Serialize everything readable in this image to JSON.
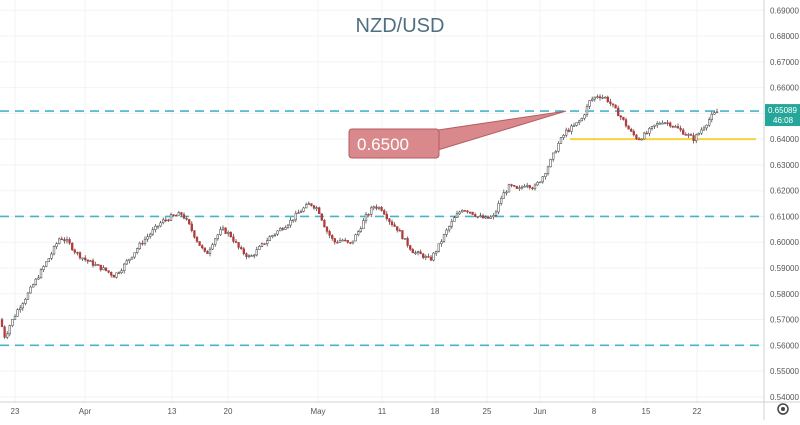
{
  "chart_data": {
    "type": "candlestick",
    "title": "NZD/USD",
    "ylim": [
      0.538,
      0.694
    ],
    "y_ticks": [
      "0.69000",
      "0.68000",
      "0.67000",
      "0.66000",
      "0.65000",
      "0.64000",
      "0.63000",
      "0.62000",
      "0.61000",
      "0.60000",
      "0.59000",
      "0.58000",
      "0.57000",
      "0.56000",
      "0.55000",
      "0.54000"
    ],
    "x_ticks": [
      "23",
      "Apr",
      "13",
      "20",
      "May",
      "11",
      "18",
      "25",
      "Jun",
      "8",
      "15",
      "22"
    ],
    "horizontal_lines": [
      {
        "kind": "dashed",
        "value": 0.6509,
        "color": "#47b4c9"
      },
      {
        "kind": "dashed",
        "value": 0.61,
        "color": "#47b4c9"
      },
      {
        "kind": "dashed",
        "value": 0.56,
        "color": "#47b4c9"
      },
      {
        "kind": "solid",
        "value": 0.64,
        "color": "#f2d43f"
      }
    ],
    "annotation": {
      "text": "0.6500",
      "color": "#d9888c"
    },
    "price_label": {
      "value": "0.65089",
      "countdown": "46:08",
      "color": "#26a69a"
    },
    "price_path": [
      [
        0,
        0.57
      ],
      [
        5,
        0.563
      ],
      [
        10,
        0.568
      ],
      [
        18,
        0.574
      ],
      [
        28,
        0.58
      ],
      [
        40,
        0.588
      ],
      [
        52,
        0.596
      ],
      [
        60,
        0.602
      ],
      [
        68,
        0.6
      ],
      [
        76,
        0.596
      ],
      [
        86,
        0.593
      ],
      [
        96,
        0.591
      ],
      [
        106,
        0.589
      ],
      [
        114,
        0.587
      ],
      [
        122,
        0.59
      ],
      [
        132,
        0.595
      ],
      [
        142,
        0.6
      ],
      [
        152,
        0.604
      ],
      [
        162,
        0.608
      ],
      [
        172,
        0.61
      ],
      [
        182,
        0.611
      ],
      [
        190,
        0.606
      ],
      [
        198,
        0.6
      ],
      [
        206,
        0.595
      ],
      [
        214,
        0.601
      ],
      [
        222,
        0.605
      ],
      [
        230,
        0.603
      ],
      [
        240,
        0.597
      ],
      [
        250,
        0.594
      ],
      [
        260,
        0.598
      ],
      [
        270,
        0.602
      ],
      [
        280,
        0.605
      ],
      [
        290,
        0.608
      ],
      [
        300,
        0.612
      ],
      [
        310,
        0.615
      ],
      [
        318,
        0.613
      ],
      [
        326,
        0.605
      ],
      [
        334,
        0.6
      ],
      [
        342,
        0.601
      ],
      [
        350,
        0.599
      ],
      [
        358,
        0.604
      ],
      [
        366,
        0.61
      ],
      [
        374,
        0.614
      ],
      [
        382,
        0.613
      ],
      [
        390,
        0.608
      ],
      [
        398,
        0.605
      ],
      [
        406,
        0.6
      ],
      [
        414,
        0.596
      ],
      [
        422,
        0.595
      ],
      [
        430,
        0.593
      ],
      [
        438,
        0.598
      ],
      [
        446,
        0.604
      ],
      [
        454,
        0.609
      ],
      [
        462,
        0.613
      ],
      [
        470,
        0.612
      ],
      [
        478,
        0.61
      ],
      [
        486,
        0.609
      ],
      [
        494,
        0.61
      ],
      [
        502,
        0.618
      ],
      [
        510,
        0.622
      ],
      [
        518,
        0.62
      ],
      [
        526,
        0.623
      ],
      [
        534,
        0.621
      ],
      [
        542,
        0.625
      ],
      [
        550,
        0.631
      ],
      [
        558,
        0.638
      ],
      [
        566,
        0.643
      ],
      [
        574,
        0.645
      ],
      [
        582,
        0.648
      ],
      [
        590,
        0.655
      ],
      [
        598,
        0.657
      ],
      [
        606,
        0.656
      ],
      [
        614,
        0.652
      ],
      [
        622,
        0.648
      ],
      [
        630,
        0.643
      ],
      [
        638,
        0.64
      ],
      [
        646,
        0.642
      ],
      [
        654,
        0.645
      ],
      [
        662,
        0.647
      ],
      [
        670,
        0.646
      ],
      [
        678,
        0.644
      ],
      [
        686,
        0.642
      ],
      [
        694,
        0.64
      ],
      [
        700,
        0.643
      ],
      [
        706,
        0.646
      ],
      [
        712,
        0.649
      ],
      [
        718,
        0.6509
      ]
    ]
  }
}
